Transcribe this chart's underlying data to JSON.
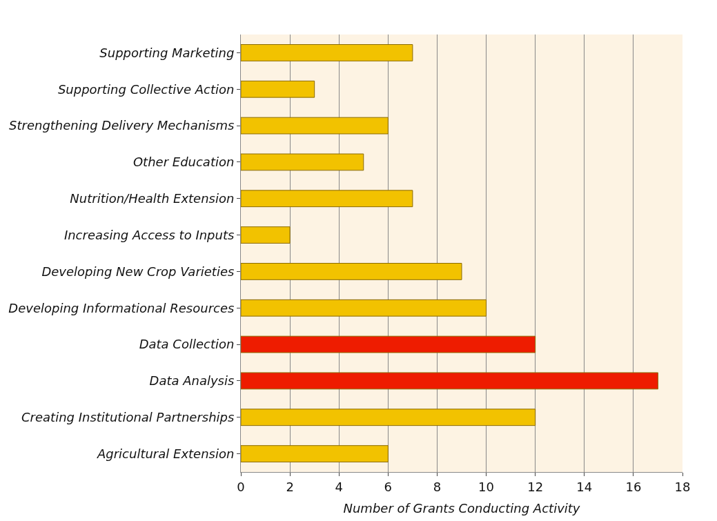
{
  "chart_data": {
    "type": "bar",
    "orientation": "horizontal",
    "xlabel": "Number of Grants Conducting Activity",
    "categories": [
      "Supporting Marketing",
      "Supporting Collective Action",
      "Strengthening Delivery Mechanisms",
      "Other Education",
      "Nutrition/Health Extension",
      "Increasing Access to Inputs",
      "Developing New Crop Varieties",
      "Developing Informational Resources",
      "Data Collection",
      "Data Analysis",
      "Creating Institutional Partnerships",
      "Agricultural Extension"
    ],
    "values": [
      7,
      3,
      6,
      5,
      7,
      2,
      9,
      10,
      12,
      17,
      12,
      6
    ],
    "colors": [
      "#f2c200",
      "#f2c200",
      "#f2c200",
      "#f2c200",
      "#f2c200",
      "#f2c200",
      "#f2c200",
      "#f2c200",
      "#ee1c00",
      "#ee1c00",
      "#f2c200",
      "#f2c200"
    ],
    "xlim": [
      0,
      18
    ],
    "xticks": [
      0,
      2,
      4,
      6,
      8,
      10,
      12,
      14,
      16,
      18
    ],
    "grid": "x"
  }
}
